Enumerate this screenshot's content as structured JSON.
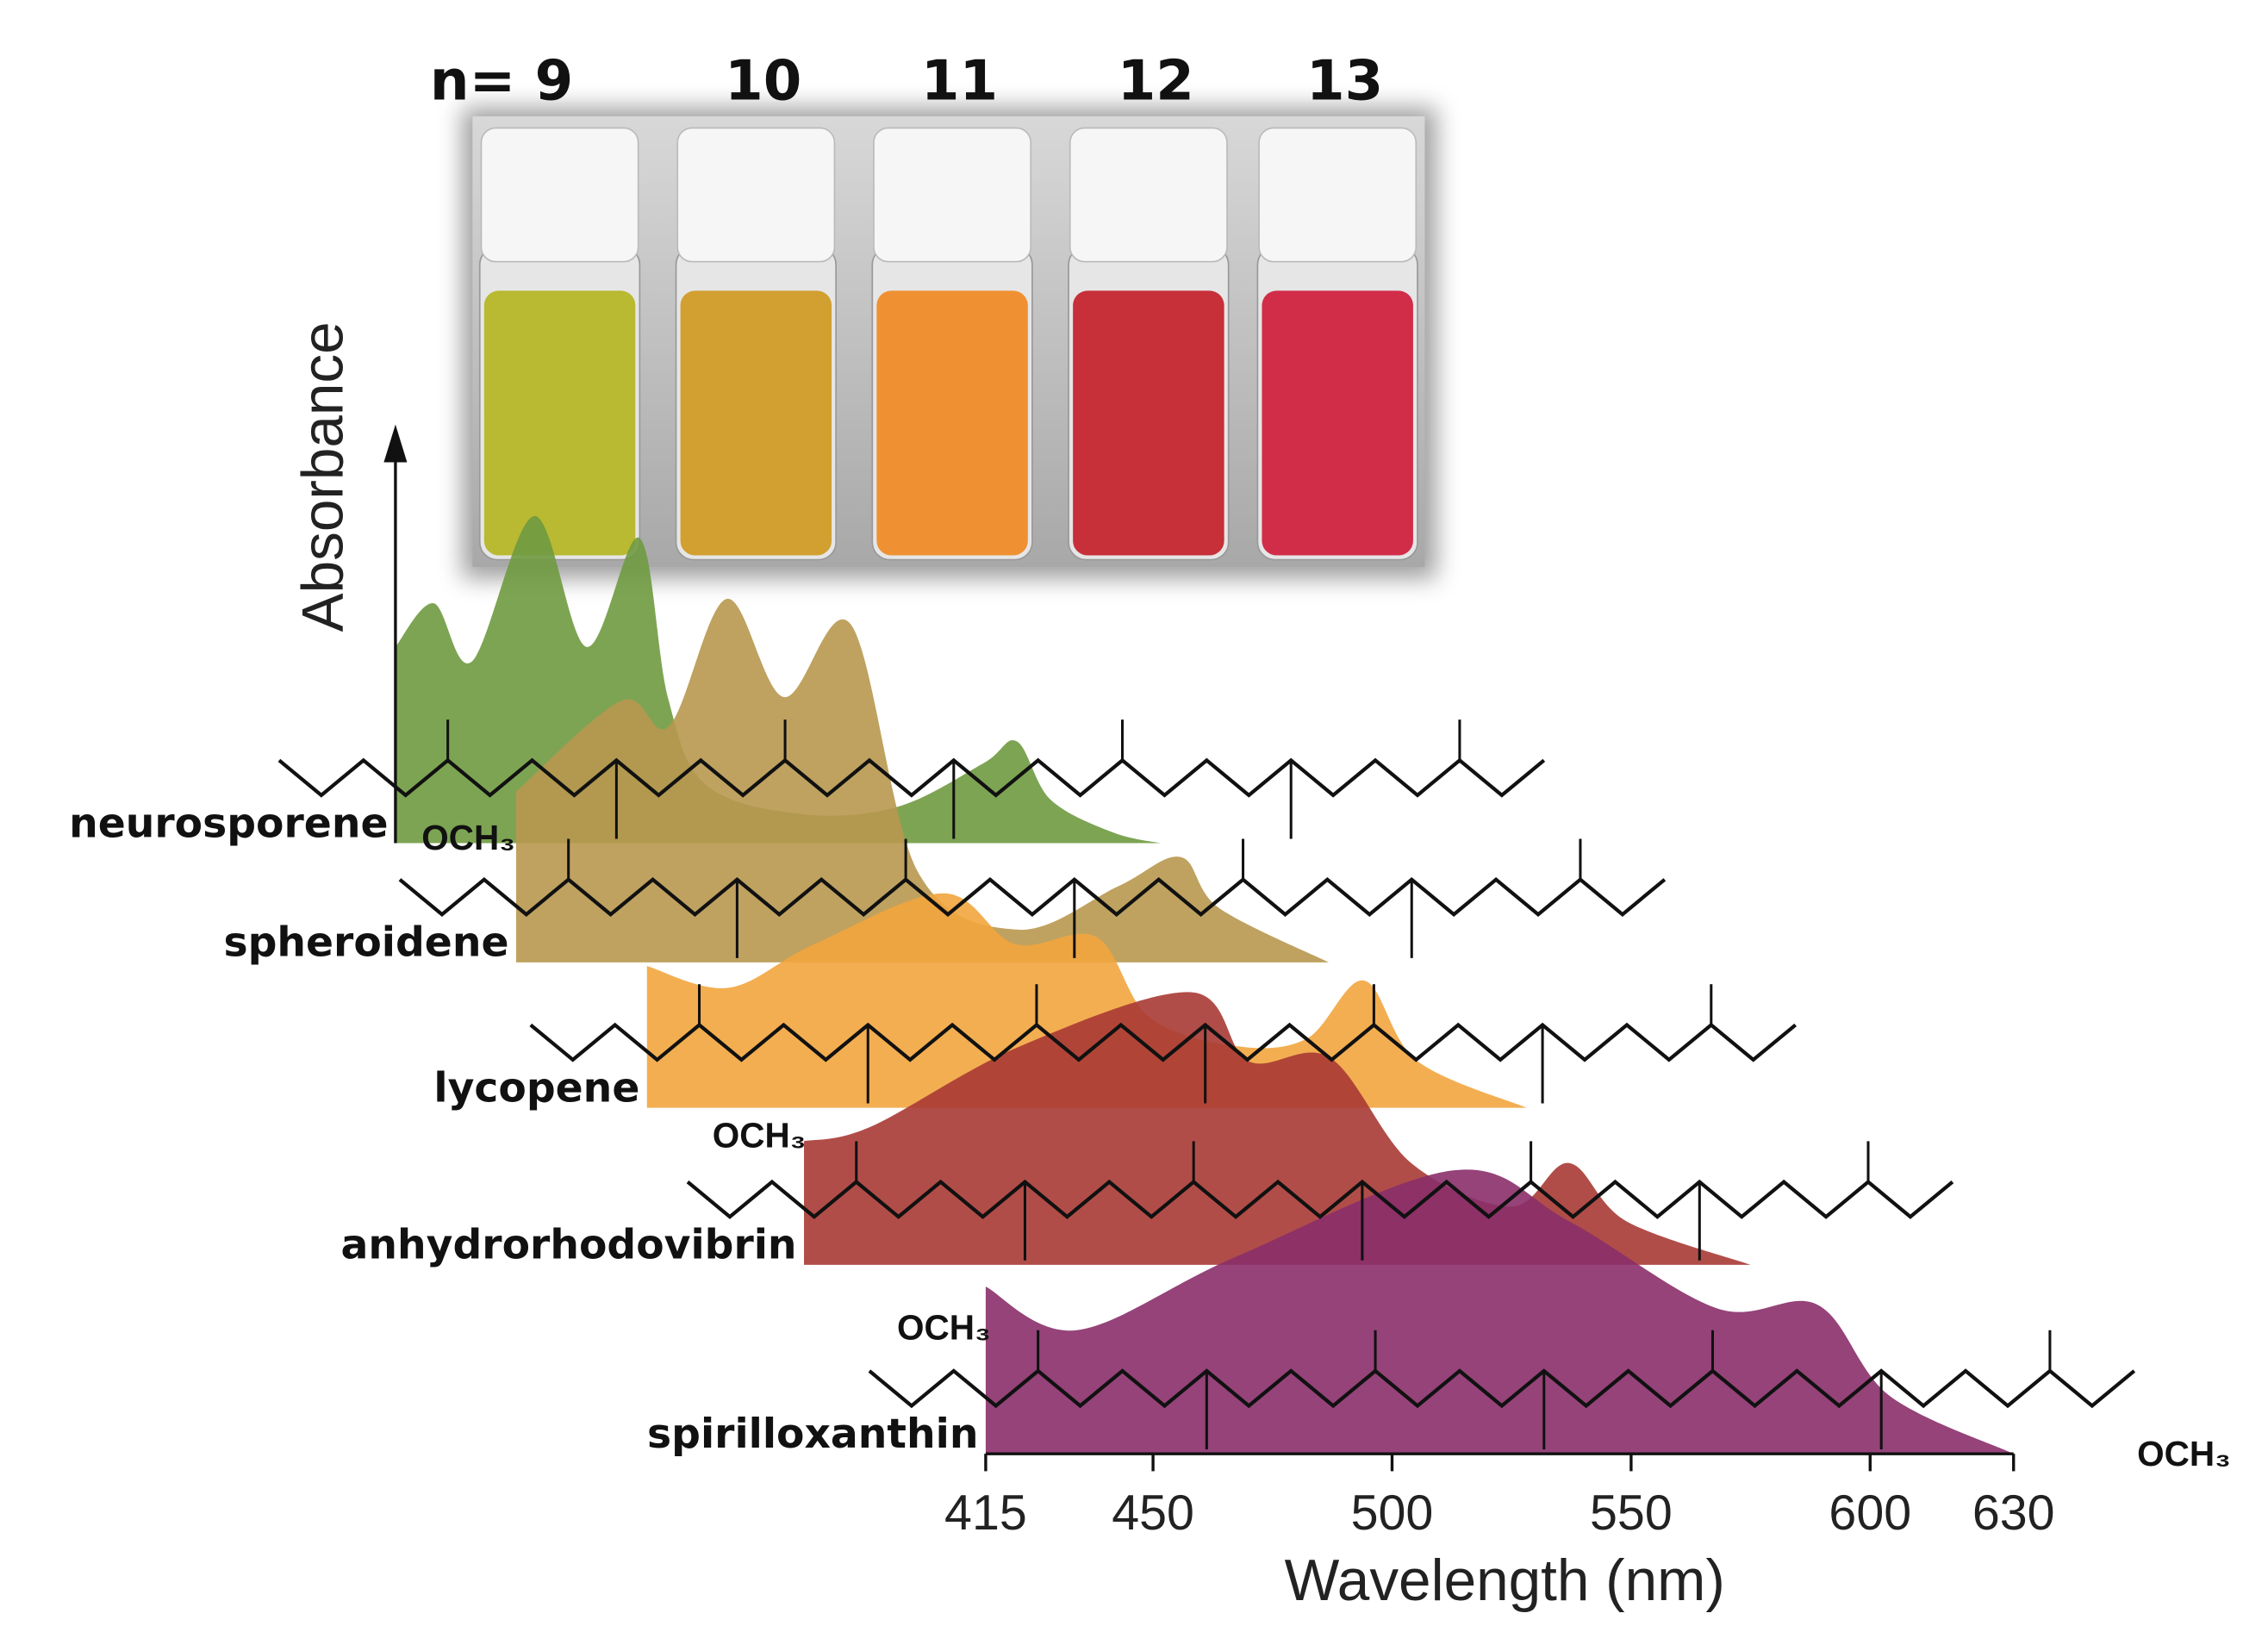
{
  "photo": {
    "labels": [
      "n= 9",
      "10",
      "11",
      "12",
      "13"
    ]
  },
  "chart_data": {
    "type": "waterfall",
    "xlabel": "Wavelength (nm)",
    "ylabel": "Absorbance",
    "xlim": [
      415,
      630
    ],
    "xticks": [
      415,
      450,
      500,
      550,
      600,
      630
    ],
    "ylim": [
      0,
      1
    ],
    "annotations": [
      "OCH₃",
      "OCH₃",
      "OCH₃",
      "OCH₃"
    ],
    "series": [
      {
        "name": "neurosporene",
        "color": "#6f9a40",
        "x": [
          415,
          423,
          431,
          444,
          455,
          466,
          472,
          480,
          500,
          520,
          538,
          545,
          552,
          565,
          575
        ],
        "values": [
          0.54,
          0.66,
          0.5,
          0.9,
          0.54,
          0.84,
          0.4,
          0.16,
          0.08,
          0.1,
          0.22,
          0.28,
          0.12,
          0.03,
          0
        ]
      },
      {
        "name": "spheroidene",
        "color": "#b8984f",
        "x": [
          415,
          437,
          447,
          459,
          471,
          485,
          499,
          520,
          541,
          554,
          562,
          585
        ],
        "values": [
          0.47,
          0.72,
          0.65,
          1.0,
          0.73,
          0.93,
          0.25,
          0.09,
          0.21,
          0.29,
          0.15,
          0
        ]
      },
      {
        "name": "lycopene",
        "color": "#f2a53e",
        "x": [
          415,
          432,
          450,
          477,
          492,
          509,
          520,
          538,
          553,
          565,
          576,
          599
        ],
        "values": [
          0.39,
          0.33,
          0.45,
          0.59,
          0.45,
          0.47,
          0.25,
          0.17,
          0.19,
          0.35,
          0.13,
          0
        ]
      },
      {
        "name": "anhydrorhodovibrin",
        "color": "#a83a34",
        "x": [
          415,
          429,
          460,
          496,
          508,
          525,
          542,
          563,
          575,
          587,
          613
        ],
        "values": [
          0.34,
          0.38,
          0.6,
          0.75,
          0.56,
          0.57,
          0.28,
          0.16,
          0.28,
          0.12,
          0
        ]
      },
      {
        "name": "spirilloxanthin",
        "color": "#8a2f6a",
        "x": [
          415,
          434,
          467,
          513,
          537,
          568,
          589,
          604,
          630
        ],
        "values": [
          0.46,
          0.34,
          0.54,
          0.78,
          0.64,
          0.4,
          0.41,
          0.16,
          0
        ]
      }
    ]
  }
}
